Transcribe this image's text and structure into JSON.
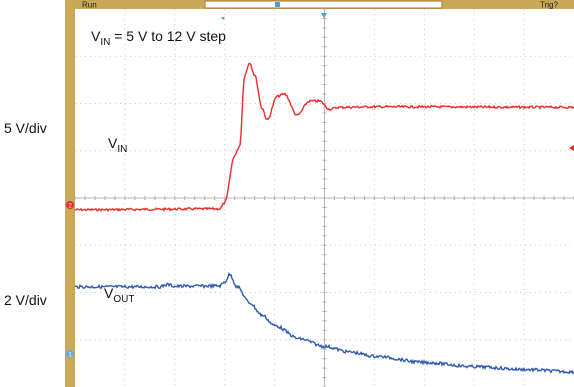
{
  "scope_header": {
    "run_label": "Run",
    "trig_label": "Trig?"
  },
  "annotations": {
    "title_prefix": "V",
    "title_sub": "IN",
    "title_rest": " = 5 V to 12 V step",
    "vin_label_main": "V",
    "vin_label_sub": "IN",
    "vout_label_main": "V",
    "vout_label_sub": "OUT",
    "vin_scale": "5 V/div",
    "vout_scale": "2 V/div"
  },
  "channel_markers": {
    "ch2": "2",
    "ch1": "1"
  },
  "colors": {
    "vin": "#ec2b2b",
    "vout": "#2f5aad",
    "bezel": "#c9a857",
    "grid": "#c8c8c8",
    "cursor": "#4aa0d8"
  },
  "chart_data": {
    "type": "line",
    "title": "VIN = 5 V to 12 V step",
    "grid": true,
    "x_divisions": 10,
    "y_divisions": 8,
    "series": [
      {
        "name": "VIN",
        "scale": "5 V/div",
        "ground_div": 4,
        "points": [
          [
            0,
            3.75
          ],
          [
            2.9,
            3.77
          ],
          [
            3.0,
            3.9
          ],
          [
            3.2,
            4.9
          ],
          [
            3.3,
            5.1
          ],
          [
            3.4,
            6.6
          ],
          [
            3.5,
            6.87
          ],
          [
            3.6,
            6.6
          ],
          [
            3.75,
            5.9
          ],
          [
            3.85,
            5.65
          ],
          [
            4.05,
            6.15
          ],
          [
            4.2,
            6.2
          ],
          [
            4.45,
            5.75
          ],
          [
            4.7,
            6.05
          ],
          [
            4.9,
            6.05
          ],
          [
            5.1,
            5.88
          ],
          [
            5.3,
            5.92
          ],
          [
            6.0,
            5.93
          ],
          [
            10,
            5.92
          ]
        ]
      },
      {
        "name": "VOUT",
        "scale": "2 V/div",
        "ground_div": 0,
        "points": [
          [
            0,
            2.12
          ],
          [
            1.7,
            2.12
          ],
          [
            1.85,
            2.17
          ],
          [
            2.0,
            2.13
          ],
          [
            2.9,
            2.14
          ],
          [
            3.0,
            2.22
          ],
          [
            3.1,
            2.38
          ],
          [
            3.25,
            2.12
          ],
          [
            3.5,
            1.78
          ],
          [
            3.75,
            1.52
          ],
          [
            4.0,
            1.3
          ],
          [
            4.5,
            1.02
          ],
          [
            5.0,
            0.86
          ],
          [
            5.5,
            0.74
          ],
          [
            6.0,
            0.65
          ],
          [
            7.0,
            0.52
          ],
          [
            8.0,
            0.43
          ],
          [
            9.0,
            0.37
          ],
          [
            10,
            0.32
          ]
        ]
      }
    ]
  }
}
